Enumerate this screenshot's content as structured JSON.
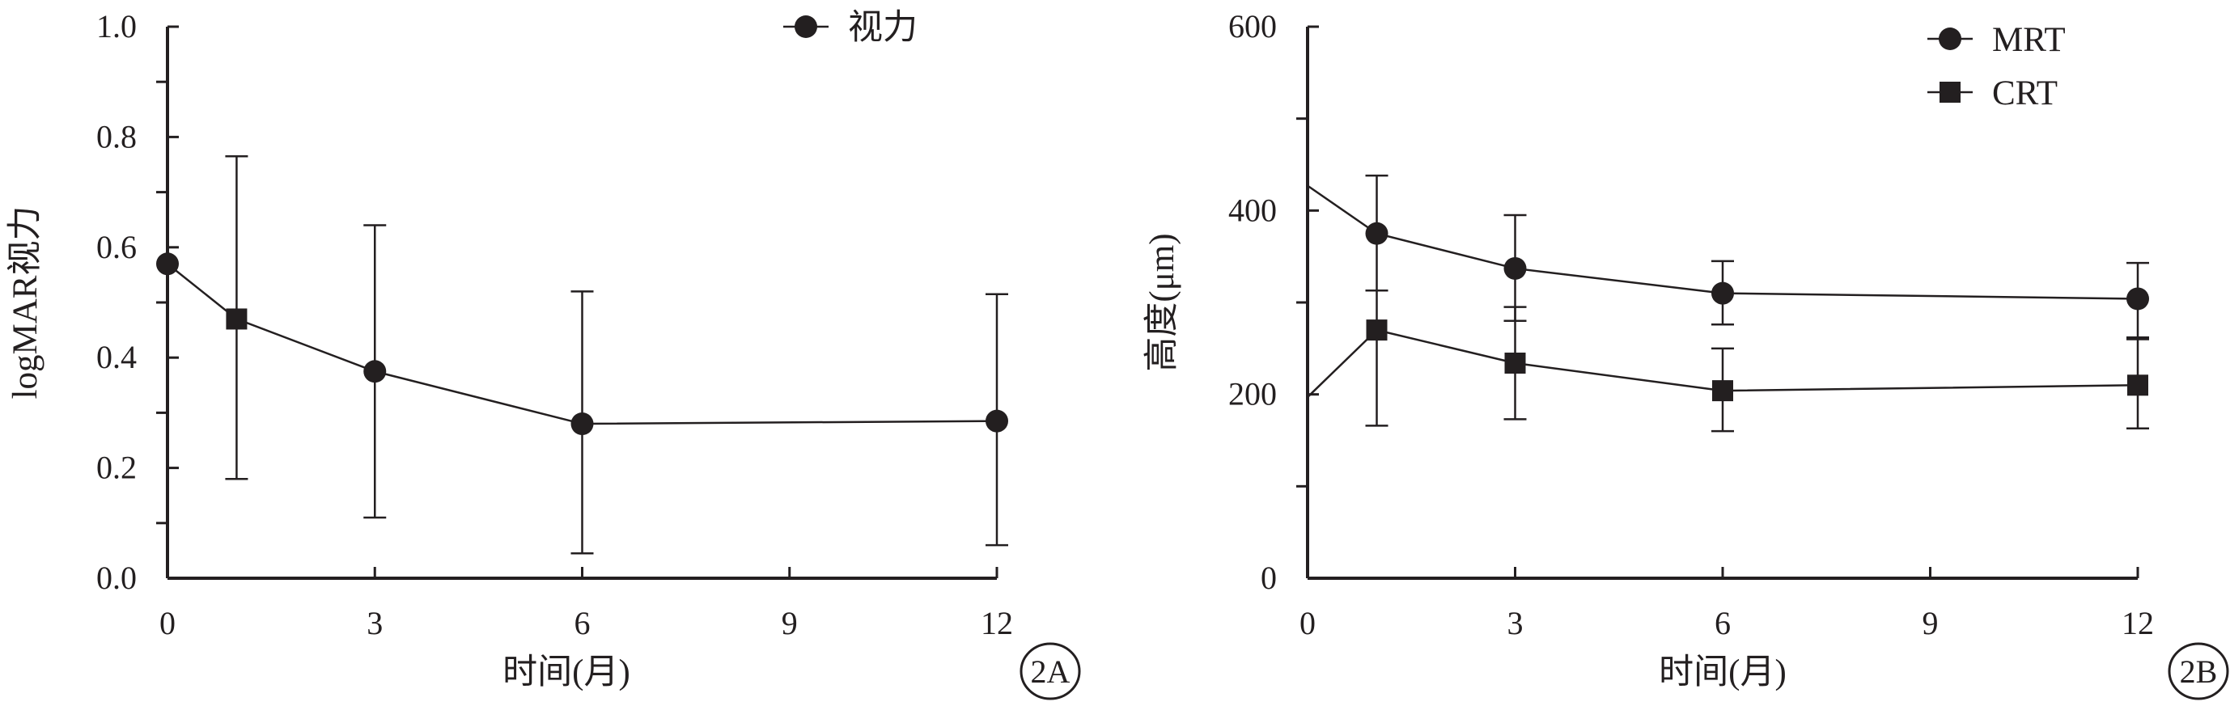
{
  "chart_data": [
    {
      "type": "line",
      "panel_label": "2A",
      "xlabel": "时间(月)",
      "ylabel": "logMAR视力",
      "xlim": [
        0,
        12
      ],
      "ylim": [
        0,
        1.0
      ],
      "x_ticks": [
        "0",
        "3",
        "6",
        "9",
        "12"
      ],
      "y_ticks": [
        "0.0",
        "0.2",
        "0.4",
        "0.6",
        "0.8",
        "1.0"
      ],
      "legend_position": "top-right",
      "series": [
        {
          "name": "视力",
          "marker": "circle",
          "x": [
            0,
            1,
            3,
            6,
            12
          ],
          "y": [
            0.57,
            0.47,
            0.375,
            0.28,
            0.285
          ],
          "err_low": [
            null,
            0.18,
            0.11,
            0.045,
            0.06
          ],
          "err_high": [
            null,
            0.765,
            0.64,
            0.52,
            0.515
          ]
        }
      ]
    },
    {
      "type": "line",
      "panel_label": "2B",
      "xlabel": "时间(月)",
      "ylabel": "高度(μm)",
      "xlim": [
        0,
        12
      ],
      "ylim": [
        0,
        600
      ],
      "x_ticks": [
        "0",
        "3",
        "6",
        "9",
        "12"
      ],
      "y_ticks": [
        "0",
        "200",
        "400",
        "600"
      ],
      "legend_position": "top-right",
      "series": [
        {
          "name": "MRT",
          "marker": "circle",
          "x": [
            0,
            1,
            3,
            6,
            12
          ],
          "y": [
            427,
            375,
            337,
            310,
            304
          ],
          "err_low": [
            null,
            313,
            280,
            276,
            262
          ],
          "err_high": [
            null,
            438,
            395,
            345,
            343
          ]
        },
        {
          "name": "CRT",
          "marker": "square",
          "x": [
            0,
            1,
            3,
            6,
            12
          ],
          "y": [
            197,
            270,
            234,
            204,
            210
          ],
          "err_low": [
            null,
            166,
            173,
            160,
            163
          ],
          "err_high": [
            null,
            313,
            295,
            250,
            260
          ]
        }
      ]
    }
  ]
}
